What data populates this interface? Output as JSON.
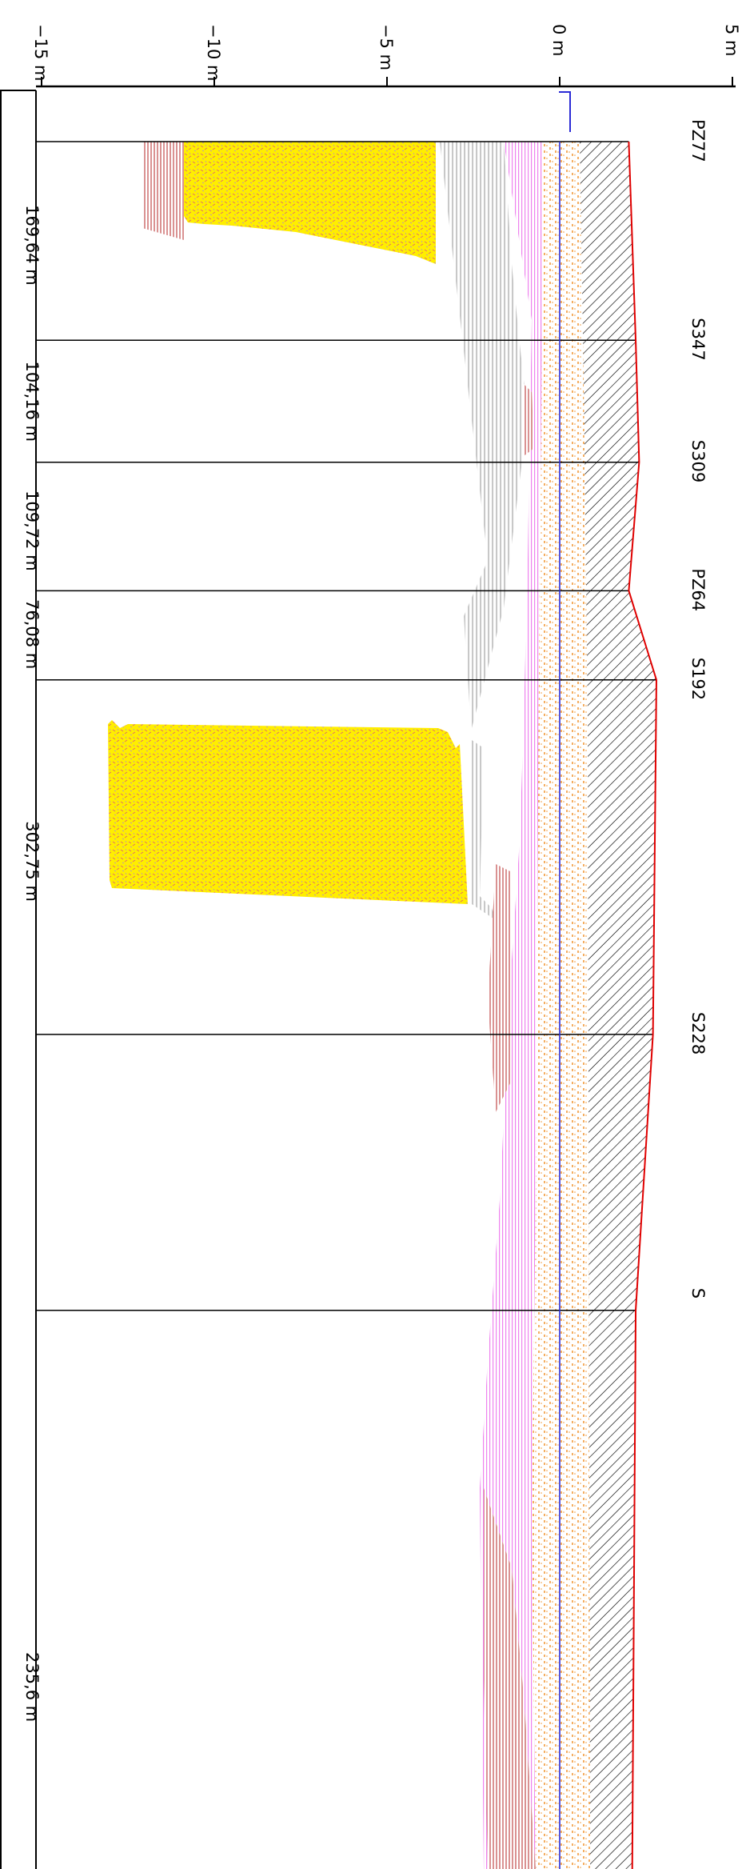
{
  "elevation_axis": {
    "unit": "m",
    "ticks": [
      {
        "value": 5,
        "label": "5 m"
      },
      {
        "value": 0,
        "label": "0 m"
      },
      {
        "value": -5,
        "label": "−5 m"
      },
      {
        "value": -10,
        "label": "−10 m"
      },
      {
        "value": -15,
        "label": "−15 m"
      }
    ]
  },
  "boreholes": [
    {
      "name": "PZ77",
      "chainage": 0
    },
    {
      "name": "S347",
      "chainage": 169.64
    },
    {
      "name": "S309",
      "chainage": 273.8
    },
    {
      "name": "PZ64",
      "chainage": 383.52
    },
    {
      "name": "S192",
      "chainage": 459.6
    },
    {
      "name": "S228",
      "chainage": 762.35
    },
    {
      "name": "S",
      "chainage": 997.95
    }
  ],
  "distances": [
    "169,64 m",
    "104,16 m",
    "109,72 m",
    "76,08 m",
    "302,75 m",
    "235,6 m"
  ],
  "ground_surface": [
    {
      "chainage": 0,
      "z": 2.0
    },
    {
      "chainage": 169.64,
      "z": 2.2
    },
    {
      "chainage": 273.8,
      "z": 2.3
    },
    {
      "chainage": 383.52,
      "z": 2.0
    },
    {
      "chainage": 459.6,
      "z": 2.8
    },
    {
      "chainage": 762.35,
      "z": 2.7
    },
    {
      "chainage": 997.95,
      "z": 2.2
    }
  ],
  "water_level_z": 0,
  "colors": {
    "ground_line": "#e00000",
    "water_line": "#2b2bd6",
    "fill_hatch": "#000000",
    "sand": "#f29a3a",
    "pink_clay": "#ee82ee",
    "gray_silt": "#c8c8c8",
    "yellow_lens": "#ffee00",
    "brown_peat": "#cd6e6e"
  }
}
